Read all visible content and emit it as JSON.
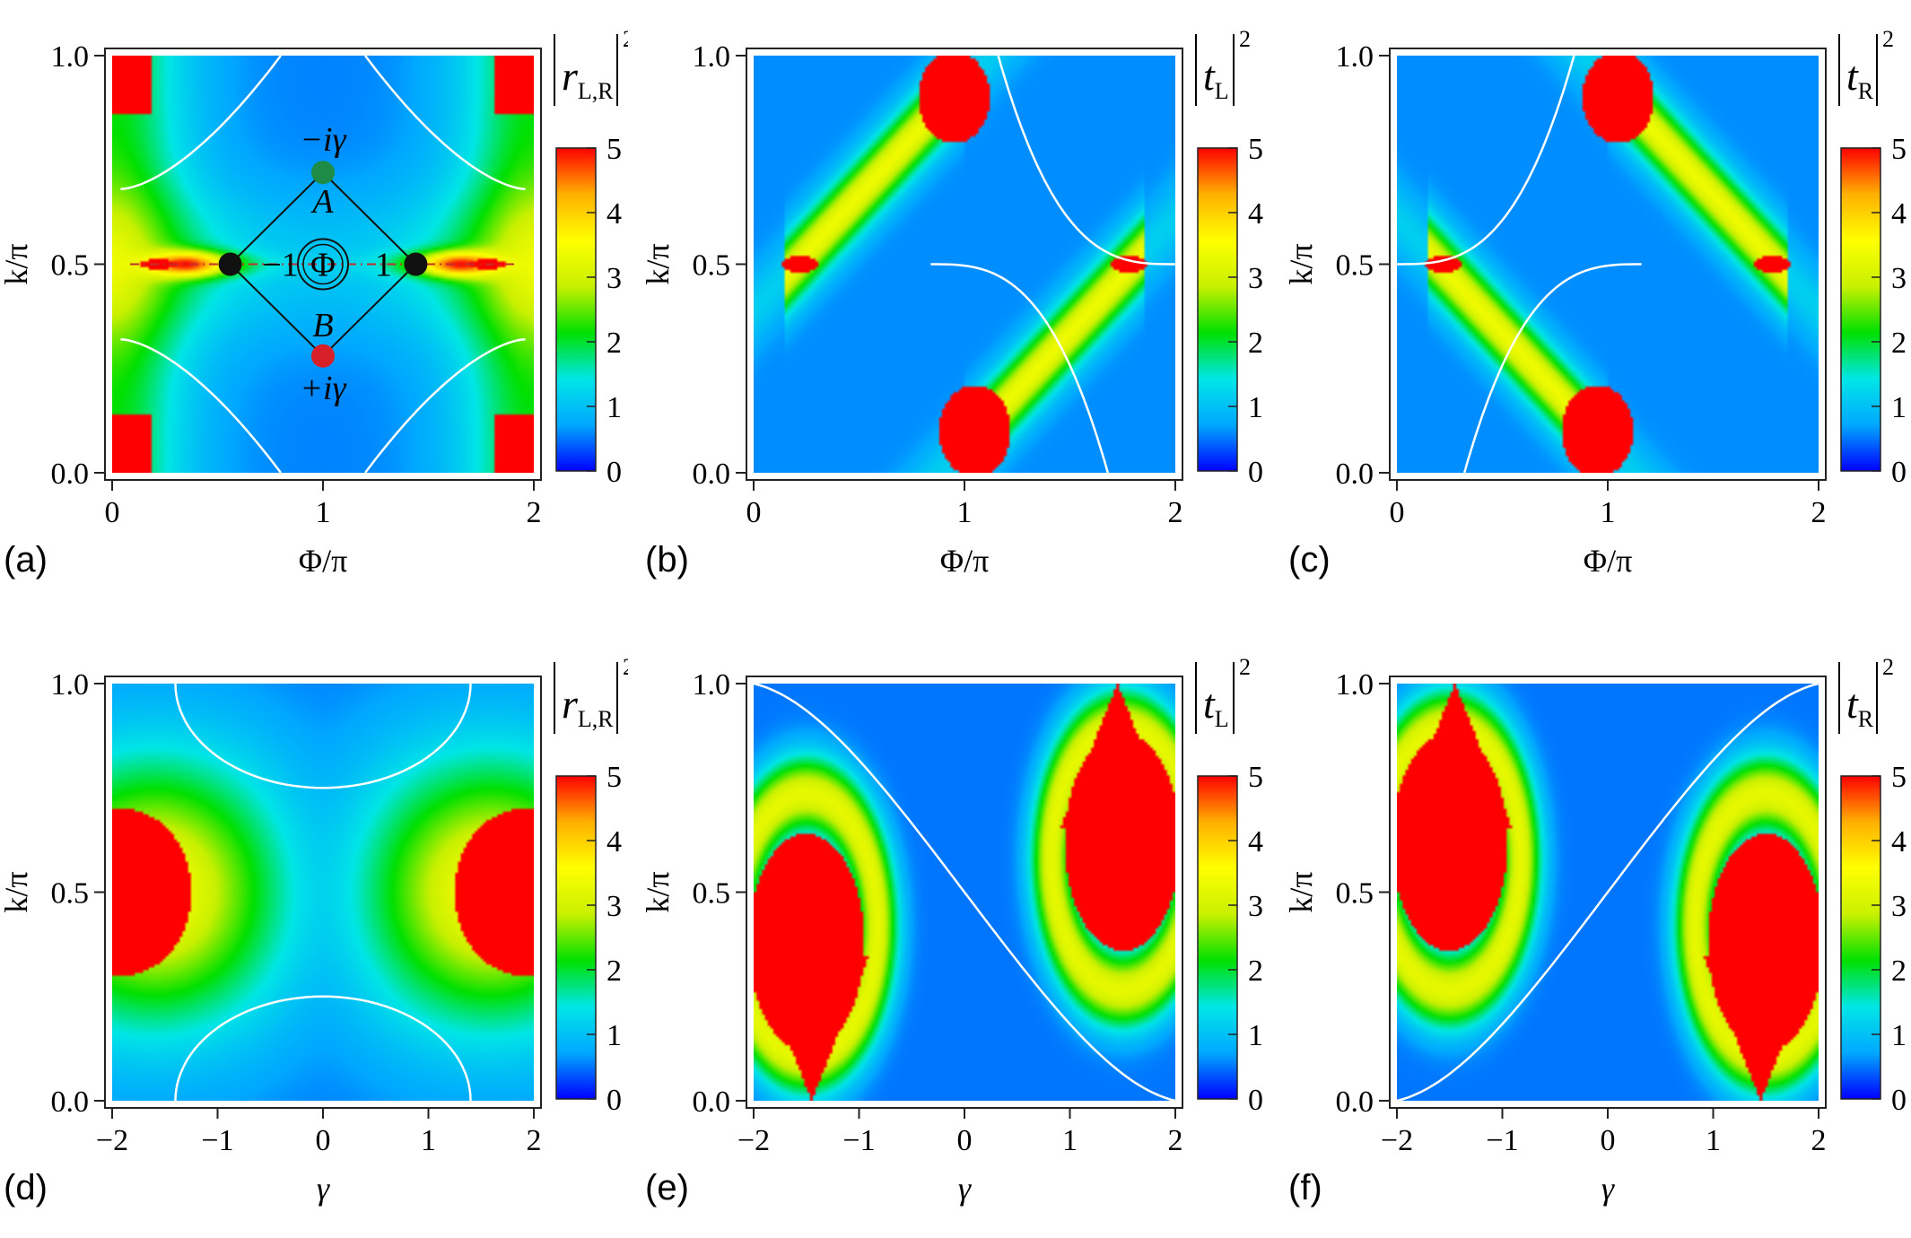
{
  "colorbar": {
    "ticks": [
      "0",
      "1",
      "2",
      "3",
      "4",
      "5"
    ],
    "stops": [
      "#0000ff",
      "#00a8ff",
      "#00e6e6",
      "#00e000",
      "#c8f000",
      "#ffff00",
      "#ffb000",
      "#ff0000"
    ]
  },
  "chart_data": [
    {
      "type": "heatmap",
      "panel_label": "(a)",
      "xlabel_base": "Φ",
      "xlabel_suffix": "/π",
      "ylabel_base": "k",
      "ylabel_suffix": "/π",
      "xticks": [
        "0",
        "1",
        "2"
      ],
      "yticks": [
        "0.0",
        "0.5",
        "1.0"
      ],
      "xlim": [
        0,
        2
      ],
      "ylim": [
        0,
        1
      ],
      "cbar": {
        "symbol": "r",
        "sub": "L,R",
        "power": "2"
      },
      "cbar_range": [
        0,
        5
      ],
      "inset": {
        "site_A": "A",
        "site_B": "B",
        "label_A": "−iγ",
        "label_B": "+iγ",
        "label_left": "−1",
        "label_right": "1",
        "flux": "Φ"
      }
    },
    {
      "type": "heatmap",
      "panel_label": "(b)",
      "xlabel_base": "Φ",
      "xlabel_suffix": "/π",
      "ylabel_base": "k",
      "ylabel_suffix": "/π",
      "xticks": [
        "0",
        "1",
        "2"
      ],
      "yticks": [
        "0.0",
        "0.5",
        "1.0"
      ],
      "xlim": [
        0,
        2
      ],
      "ylim": [
        0,
        1
      ],
      "cbar": {
        "symbol": "t",
        "sub": "L",
        "power": "2"
      },
      "cbar_range": [
        0,
        5
      ]
    },
    {
      "type": "heatmap",
      "panel_label": "(c)",
      "xlabel_base": "Φ",
      "xlabel_suffix": "/π",
      "ylabel_base": "k",
      "ylabel_suffix": "/π",
      "xticks": [
        "0",
        "1",
        "2"
      ],
      "yticks": [
        "0.0",
        "0.5",
        "1.0"
      ],
      "xlim": [
        0,
        2
      ],
      "ylim": [
        0,
        1
      ],
      "cbar": {
        "symbol": "t",
        "sub": "R",
        "power": "2"
      },
      "cbar_range": [
        0,
        5
      ]
    },
    {
      "type": "heatmap",
      "panel_label": "(d)",
      "xlabel_base": "γ",
      "xlabel_suffix": "",
      "ylabel_base": "k",
      "ylabel_suffix": "/π",
      "xticks": [
        "−2",
        "−1",
        "0",
        "1",
        "2"
      ],
      "yticks": [
        "0.0",
        "0.5",
        "1.0"
      ],
      "xlim": [
        -2,
        2
      ],
      "ylim": [
        0,
        1
      ],
      "cbar": {
        "symbol": "r",
        "sub": "L,R",
        "power": "2"
      },
      "cbar_range": [
        0,
        5
      ]
    },
    {
      "type": "heatmap",
      "panel_label": "(e)",
      "xlabel_base": "γ",
      "xlabel_suffix": "",
      "ylabel_base": "k",
      "ylabel_suffix": "/π",
      "xticks": [
        "−2",
        "−1",
        "0",
        "1",
        "2"
      ],
      "yticks": [
        "0.0",
        "0.5",
        "1.0"
      ],
      "xlim": [
        -2,
        2
      ],
      "ylim": [
        0,
        1
      ],
      "cbar": {
        "symbol": "t",
        "sub": "L",
        "power": "2"
      },
      "cbar_range": [
        0,
        5
      ]
    },
    {
      "type": "heatmap",
      "panel_label": "(f)",
      "xlabel_base": "γ",
      "xlabel_suffix": "",
      "ylabel_base": "k",
      "ylabel_suffix": "/π",
      "xticks": [
        "−2",
        "−1",
        "0",
        "1",
        "2"
      ],
      "yticks": [
        "0.0",
        "0.5",
        "1.0"
      ],
      "xlim": [
        -2,
        2
      ],
      "ylim": [
        0,
        1
      ],
      "cbar": {
        "symbol": "t",
        "sub": "R",
        "power": "2"
      },
      "cbar_range": [
        0,
        5
      ]
    }
  ]
}
